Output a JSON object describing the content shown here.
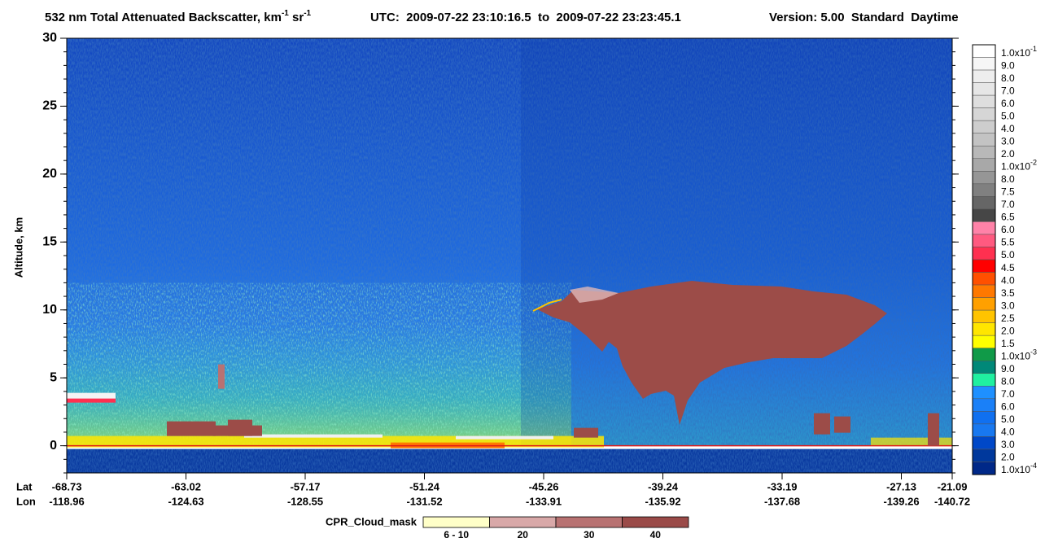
{
  "chart_data": {
    "type": "curtain",
    "title": {
      "segments": [
        {
          "text": "532 nm Total Attenuated Backscatter, km"
        },
        {
          "text": "-1",
          "sup": true
        },
        {
          "text": " sr"
        },
        {
          "text": "-1",
          "sup": true
        }
      ],
      "utc": "UTC:  2009-07-22 23:10:16.5  to  2009-07-22 23:23:45.1",
      "version": "Version: 5.00  Standard  Daytime"
    },
    "y_label": "Altitude, km",
    "ylim": [
      -2,
      30
    ],
    "yticks": [
      0,
      5,
      10,
      15,
      20,
      25,
      30
    ],
    "x_labels": {
      "lat_name": "Lat",
      "lon_name": "Lon",
      "lat": [
        -68.73,
        -63.02,
        -57.17,
        -51.24,
        -45.26,
        -39.24,
        -33.19,
        -27.13,
        -21.09
      ],
      "lon": [
        -118.96,
        -124.63,
        -128.55,
        -131.52,
        -133.91,
        -135.92,
        -137.68,
        -139.26,
        -140.72
      ]
    },
    "colorbar": [
      {
        "label": "1.0x10",
        "sup": "-1",
        "color": "#ffffff"
      },
      {
        "label": "9.0",
        "color": "#f6f6f6"
      },
      {
        "label": "8.0",
        "color": "#eeeeee"
      },
      {
        "label": "7.0",
        "color": "#e6e6e6"
      },
      {
        "label": "6.0",
        "color": "#dedede"
      },
      {
        "label": "5.0",
        "color": "#d6d6d6"
      },
      {
        "label": "4.0",
        "color": "#cdcdcd"
      },
      {
        "label": "3.0",
        "color": "#c3c3c3"
      },
      {
        "label": "2.0",
        "color": "#b8b8b8"
      },
      {
        "label": "1.0x10",
        "sup": "-2",
        "color": "#a8a8a8"
      },
      {
        "label": "8.0",
        "color": "#969696"
      },
      {
        "label": "7.5",
        "color": "#808080"
      },
      {
        "label": "7.0",
        "color": "#666666"
      },
      {
        "label": "6.5",
        "color": "#464646"
      },
      {
        "label": "6.0",
        "color": "#ff82a8"
      },
      {
        "label": "5.5",
        "color": "#ff5a80"
      },
      {
        "label": "5.0",
        "color": "#ff3050"
      },
      {
        "label": "4.5",
        "color": "#ff0000"
      },
      {
        "label": "4.0",
        "color": "#ff5000"
      },
      {
        "label": "3.5",
        "color": "#ff7800"
      },
      {
        "label": "3.0",
        "color": "#ffa000"
      },
      {
        "label": "2.5",
        "color": "#ffc400"
      },
      {
        "label": "2.0",
        "color": "#ffe600"
      },
      {
        "label": "1.5",
        "color": "#ffff00"
      },
      {
        "label": "1.0x10",
        "sup": "-3",
        "color": "#109a48"
      },
      {
        "label": "9.0",
        "color": "#008878"
      },
      {
        "label": "8.0",
        "color": "#20f0a0"
      },
      {
        "label": "7.0",
        "color": "#1e90ff"
      },
      {
        "label": "6.0",
        "color": "#1a80f8"
      },
      {
        "label": "5.0",
        "color": "#1070f0"
      },
      {
        "label": "4.0",
        "color": "#1878f0"
      },
      {
        "label": "3.0",
        "color": "#0048c8"
      },
      {
        "label": "2.0",
        "color": "#00389c"
      },
      {
        "label": "1.0x10",
        "sup": "-4",
        "color": "#002888"
      }
    ],
    "cloud_mask": {
      "title": "CPR_Cloud_mask",
      "classes": [
        {
          "label": "6 - 10",
          "color": "#ffffc8"
        },
        {
          "label": "20",
          "color": "#d8a8a8"
        },
        {
          "label": "30",
          "color": "#b87272"
        },
        {
          "label": "40",
          "color": "#9a4a48"
        }
      ]
    }
  }
}
